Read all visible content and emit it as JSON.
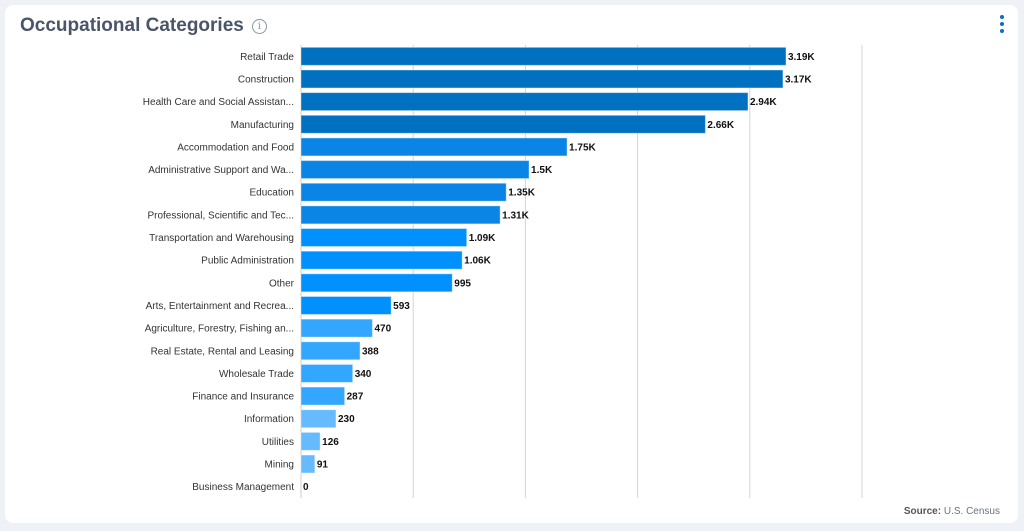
{
  "header": {
    "title": "Occupational Categories",
    "info_icon": "info-icon",
    "menu_icon": "kebab-menu-icon"
  },
  "footer": {
    "source_label": "Source:",
    "source_value": "U.S. Census"
  },
  "chart_data": {
    "type": "bar",
    "orientation": "horizontal",
    "title": "Occupational Categories",
    "xlabel": "",
    "ylabel": "",
    "xlim": [
      0,
      3690
    ],
    "grid": true,
    "categories": [
      "Retail Trade",
      "Construction",
      "Health Care and Social Assistan...",
      "Manufacturing",
      "Accommodation and Food",
      "Administrative Support and Wa...",
      "Education",
      "Professional, Scientific and Tec...",
      "Transportation and Warehousing",
      "Public Administration",
      "Other",
      "Arts, Entertainment and Recrea...",
      "Agriculture, Forestry, Fishing an...",
      "Real Estate, Rental and Leasing",
      "Wholesale Trade",
      "Finance and Insurance",
      "Information",
      "Utilities",
      "Mining",
      "Business Management"
    ],
    "values": [
      3190,
      3170,
      2940,
      2660,
      1750,
      1500,
      1350,
      1310,
      1090,
      1060,
      995,
      593,
      470,
      388,
      340,
      287,
      230,
      126,
      91,
      0
    ],
    "data_labels": [
      "3.19K",
      "3.17K",
      "2.94K",
      "2.66K",
      "1.75K",
      "1.5K",
      "1.35K",
      "1.31K",
      "1.09K",
      "1.06K",
      "995",
      "593",
      "470",
      "388",
      "340",
      "287",
      "230",
      "126",
      "91",
      "0"
    ],
    "colors": [
      "#0070c0",
      "#0070c0",
      "#0070c0",
      "#0070c0",
      "#0a85e6",
      "#0a85e6",
      "#0a85e6",
      "#0a85e6",
      "#0091ff",
      "#0091ff",
      "#0091ff",
      "#0091ff",
      "#33a6ff",
      "#33a6ff",
      "#33a6ff",
      "#33a6ff",
      "#66bbff",
      "#66bbff",
      "#66bbff",
      "#66bbff"
    ]
  }
}
